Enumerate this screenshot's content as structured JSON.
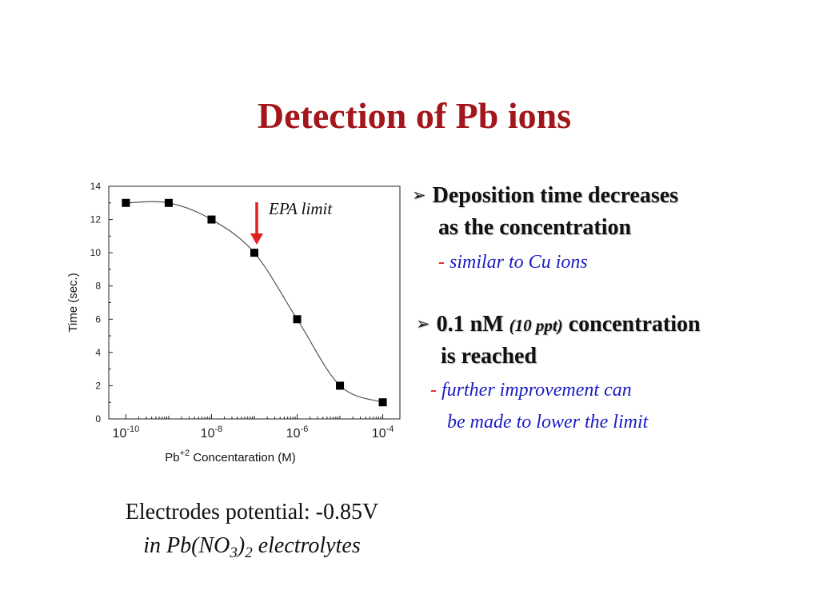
{
  "slide": {
    "title": "Detection of Pb ions",
    "bullet1": {
      "line1": "Deposition time decreases",
      "line2": "as the concentration",
      "note_dash": "-",
      "note_text": "similar to Cu ions"
    },
    "bullet2": {
      "value": "0.1 nM",
      "ppt": "(10 ppt)",
      "rest": "concentration",
      "line2": "is reached",
      "note_dash": "-",
      "note_line1": "further improvement can",
      "note_line2": "be made to lower the limit"
    },
    "caption": {
      "line1": "Electrodes potential: -0.85V",
      "line2_pre": "in Pb(NO",
      "sub3": "3",
      "close": ")",
      "sub2": "2",
      "line2_post": "electrolytes"
    }
  },
  "chart_data": {
    "type": "scatter",
    "xscale": "log",
    "xlim_exp": [
      -10.4,
      -3.6
    ],
    "x_tick_labels": [
      "10-10",
      "10-8",
      "10-6",
      "10-4"
    ],
    "ylabel": "Time (sec.)",
    "ylim": [
      0,
      14
    ],
    "y_ticks": [
      0,
      2,
      4,
      6,
      8,
      10,
      12,
      14
    ],
    "xlabel_base": "Pb",
    "xlabel_sup": "+2",
    "xlabel_rest": "Concentaration (M)",
    "series": [
      {
        "x_exp": [
          -10,
          -9,
          -8,
          -7,
          -6,
          -5,
          -4
        ],
        "y": [
          13,
          13,
          12,
          10,
          6,
          2,
          1
        ]
      }
    ],
    "annotation": {
      "text": "EPA limit",
      "x_exp": -7,
      "color": "#e02020"
    },
    "colors": {
      "marker": "#000000",
      "curve": "#555555"
    }
  }
}
